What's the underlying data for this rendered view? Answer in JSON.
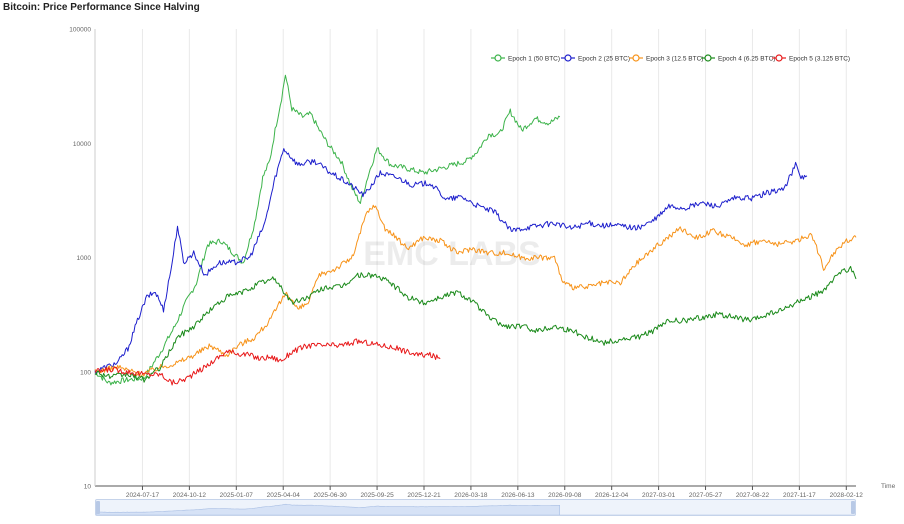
{
  "page": {
    "title": "Bitcoin: Price Performance Since Halving"
  },
  "colors": {
    "grid": "#e9e9e9",
    "axis": "#555555",
    "text": "#666666",
    "zoom_fill": "#dbe6f8"
  },
  "chart_data": {
    "type": "line",
    "title": "Bitcoin: Price Performance Since Halving",
    "xlabel": "Time",
    "ylabel": "",
    "y_scale": "log",
    "ylim": [
      10,
      100000
    ],
    "y_ticks": [
      "10",
      "100",
      "1000",
      "10000",
      "100000"
    ],
    "x_ticks": [
      "2024-07-17",
      "2024-10-12",
      "2025-01-07",
      "2025-04-04",
      "2025-06-30",
      "2025-09-25",
      "2025-12-21",
      "2026-03-18",
      "2026-06-13",
      "2026-09-08",
      "2026-12-04",
      "2027-03-01",
      "2027-05-27",
      "2027-08-22",
      "2027-11-17",
      "2028-02-12"
    ],
    "xlim": [
      "2024-04-20",
      "2028-03-01"
    ],
    "legend_position": "top-right",
    "watermark": "EMC LABS",
    "series": [
      {
        "name": "Epoch 1 (50 BTC)",
        "color": "#3cb34a",
        "x": [
          "2024-04-20",
          "2024-05-15",
          "2024-06-20",
          "2024-07-20",
          "2024-08-20",
          "2024-09-15",
          "2024-10-05",
          "2024-10-25",
          "2024-11-15",
          "2024-12-10",
          "2025-01-01",
          "2025-01-20",
          "2025-02-10",
          "2025-02-25",
          "2025-03-10",
          "2025-03-20",
          "2025-04-01",
          "2025-04-08",
          "2025-04-20",
          "2025-05-10",
          "2025-05-25",
          "2025-06-10",
          "2025-06-28",
          "2025-07-20",
          "2025-08-10",
          "2025-08-25",
          "2025-09-10",
          "2025-09-25",
          "2025-10-20",
          "2025-11-20",
          "2025-12-20",
          "2026-01-20",
          "2026-02-15",
          "2026-03-10",
          "2026-03-30",
          "2026-04-20",
          "2026-05-10",
          "2026-05-30",
          "2026-06-20",
          "2026-07-15",
          "2026-08-10",
          "2026-08-30"
        ],
        "values": [
          100,
          80,
          85,
          88,
          150,
          250,
          400,
          600,
          1300,
          1400,
          1100,
          900,
          2000,
          5000,
          7000,
          13000,
          25000,
          40000,
          20000,
          17000,
          18000,
          13000,
          9500,
          7000,
          4000,
          3000,
          5500,
          9000,
          6500,
          6000,
          5500,
          6000,
          6500,
          7000,
          8500,
          12000,
          12000,
          19000,
          13000,
          16500,
          15000,
          17000
        ]
      },
      {
        "name": "Epoch 2 (25 BTC)",
        "color": "#1d1fcc",
        "x": [
          "2024-04-20",
          "2024-05-10",
          "2024-06-01",
          "2024-06-20",
          "2024-07-10",
          "2024-07-25",
          "2024-08-10",
          "2024-08-25",
          "2024-09-10",
          "2024-09-20",
          "2024-10-01",
          "2024-10-20",
          "2024-11-10",
          "2024-12-05",
          "2025-01-01",
          "2025-02-01",
          "2025-03-01",
          "2025-03-20",
          "2025-04-05",
          "2025-05-01",
          "2025-06-01",
          "2025-07-01",
          "2025-08-01",
          "2025-09-01",
          "2025-10-01",
          "2025-11-01",
          "2025-12-01",
          "2026-01-01",
          "2026-02-01",
          "2026-03-01",
          "2026-04-01",
          "2026-05-01",
          "2026-06-01",
          "2026-06-20",
          "2026-07-20",
          "2026-08-20",
          "2026-09-20",
          "2026-10-20",
          "2026-11-20",
          "2026-12-20",
          "2027-01-20",
          "2027-02-20",
          "2027-03-20",
          "2027-04-20",
          "2027-05-20",
          "2027-06-20",
          "2027-07-20",
          "2027-08-20",
          "2027-09-20",
          "2027-10-20",
          "2027-11-10",
          "2027-11-20",
          "2027-12-01"
        ],
        "values": [
          100,
          110,
          120,
          160,
          300,
          450,
          500,
          350,
          900,
          1900,
          900,
          1100,
          700,
          900,
          900,
          1000,
          2000,
          5000,
          9000,
          6500,
          7000,
          5500,
          4500,
          3500,
          5500,
          5000,
          4300,
          4500,
          3200,
          3400,
          2800,
          2500,
          1700,
          1800,
          1900,
          2000,
          1800,
          2000,
          1900,
          1900,
          1800,
          2100,
          2800,
          2700,
          3000,
          2800,
          3300,
          3300,
          3700,
          4000,
          6500,
          5000,
          5200
        ]
      },
      {
        "name": "Epoch 3 (12.5 BTC)",
        "color": "#f7931a",
        "x": [
          "2024-04-20",
          "2024-06-01",
          "2024-07-15",
          "2024-08-20",
          "2024-09-20",
          "2024-10-20",
          "2024-11-20",
          "2024-12-20",
          "2025-01-10",
          "2025-02-10",
          "2025-03-10",
          "2025-04-10",
          "2025-05-01",
          "2025-05-20",
          "2025-06-10",
          "2025-07-10",
          "2025-08-10",
          "2025-09-05",
          "2025-09-20",
          "2025-10-10",
          "2025-10-30",
          "2025-11-20",
          "2025-12-20",
          "2026-01-20",
          "2026-02-20",
          "2026-03-20",
          "2026-04-20",
          "2026-05-20",
          "2026-06-20",
          "2026-07-20",
          "2026-08-20",
          "2026-09-05",
          "2026-09-20",
          "2026-10-20",
          "2026-11-20",
          "2026-12-20",
          "2027-01-20",
          "2027-02-20",
          "2027-03-10",
          "2027-04-10",
          "2027-05-10",
          "2027-06-10",
          "2027-07-10",
          "2027-08-10",
          "2027-09-10",
          "2027-10-10",
          "2027-11-10",
          "2027-12-10",
          "2028-01-01",
          "2028-01-20",
          "2028-02-10",
          "2028-03-01"
        ],
        "values": [
          100,
          110,
          95,
          110,
          120,
          140,
          170,
          140,
          170,
          200,
          280,
          500,
          350,
          400,
          700,
          800,
          1000,
          2400,
          2900,
          1800,
          1500,
          1200,
          1500,
          1400,
          1100,
          1200,
          1100,
          1100,
          1000,
          1000,
          1000,
          600,
          550,
          550,
          600,
          600,
          900,
          1200,
          1400,
          1800,
          1500,
          1700,
          1500,
          1300,
          1400,
          1300,
          1400,
          1600,
          800,
          1100,
          1400,
          1500
        ]
      },
      {
        "name": "Epoch 4 (6.25 BTC)",
        "color": "#1a8a1a",
        "x": [
          "2024-04-20",
          "2024-05-20",
          "2024-06-20",
          "2024-07-20",
          "2024-08-20",
          "2024-09-20",
          "2024-10-20",
          "2024-11-20",
          "2024-12-20",
          "2025-01-20",
          "2025-02-20",
          "2025-03-20",
          "2025-04-20",
          "2025-05-20",
          "2025-06-20",
          "2025-07-20",
          "2025-08-20",
          "2025-09-20",
          "2025-10-20",
          "2025-11-20",
          "2025-12-20",
          "2026-01-20",
          "2026-02-20",
          "2026-03-20",
          "2026-04-20",
          "2026-05-20",
          "2026-06-20",
          "2026-07-20",
          "2026-08-20",
          "2026-09-20",
          "2026-10-20",
          "2026-11-20",
          "2026-12-20",
          "2027-01-20",
          "2027-02-20",
          "2027-03-20",
          "2027-04-20",
          "2027-05-20",
          "2027-06-20",
          "2027-07-20",
          "2027-08-20",
          "2027-09-20",
          "2027-10-20",
          "2027-11-20",
          "2027-12-20",
          "2028-01-10",
          "2028-01-30",
          "2028-02-20",
          "2028-03-01"
        ],
        "values": [
          100,
          90,
          95,
          85,
          110,
          200,
          250,
          350,
          450,
          500,
          600,
          650,
          400,
          450,
          550,
          550,
          700,
          700,
          600,
          450,
          400,
          450,
          500,
          420,
          300,
          250,
          250,
          230,
          250,
          230,
          200,
          180,
          190,
          200,
          230,
          280,
          280,
          300,
          320,
          300,
          280,
          320,
          350,
          420,
          480,
          550,
          750,
          800,
          650
        ]
      },
      {
        "name": "Epoch 5 (3.125 BTC)",
        "color": "#e8191a",
        "x": [
          "2024-04-20",
          "2024-05-20",
          "2024-06-20",
          "2024-07-20",
          "2024-08-20",
          "2024-09-10",
          "2024-10-01",
          "2024-10-20",
          "2024-11-10",
          "2024-12-01",
          "2024-12-20",
          "2025-01-10",
          "2025-02-01",
          "2025-02-20",
          "2025-03-10",
          "2025-04-01",
          "2025-04-20",
          "2025-05-20",
          "2025-06-20",
          "2025-07-20",
          "2025-08-20",
          "2025-09-20",
          "2025-10-20",
          "2025-11-01",
          "2025-11-20",
          "2025-12-10",
          "2026-01-01",
          "2026-01-20"
        ],
        "values": [
          100,
          105,
          100,
          95,
          95,
          80,
          85,
          95,
          110,
          130,
          150,
          145,
          140,
          130,
          135,
          125,
          150,
          170,
          170,
          170,
          185,
          175,
          165,
          160,
          150,
          140,
          140,
          130
        ]
      }
    ]
  }
}
